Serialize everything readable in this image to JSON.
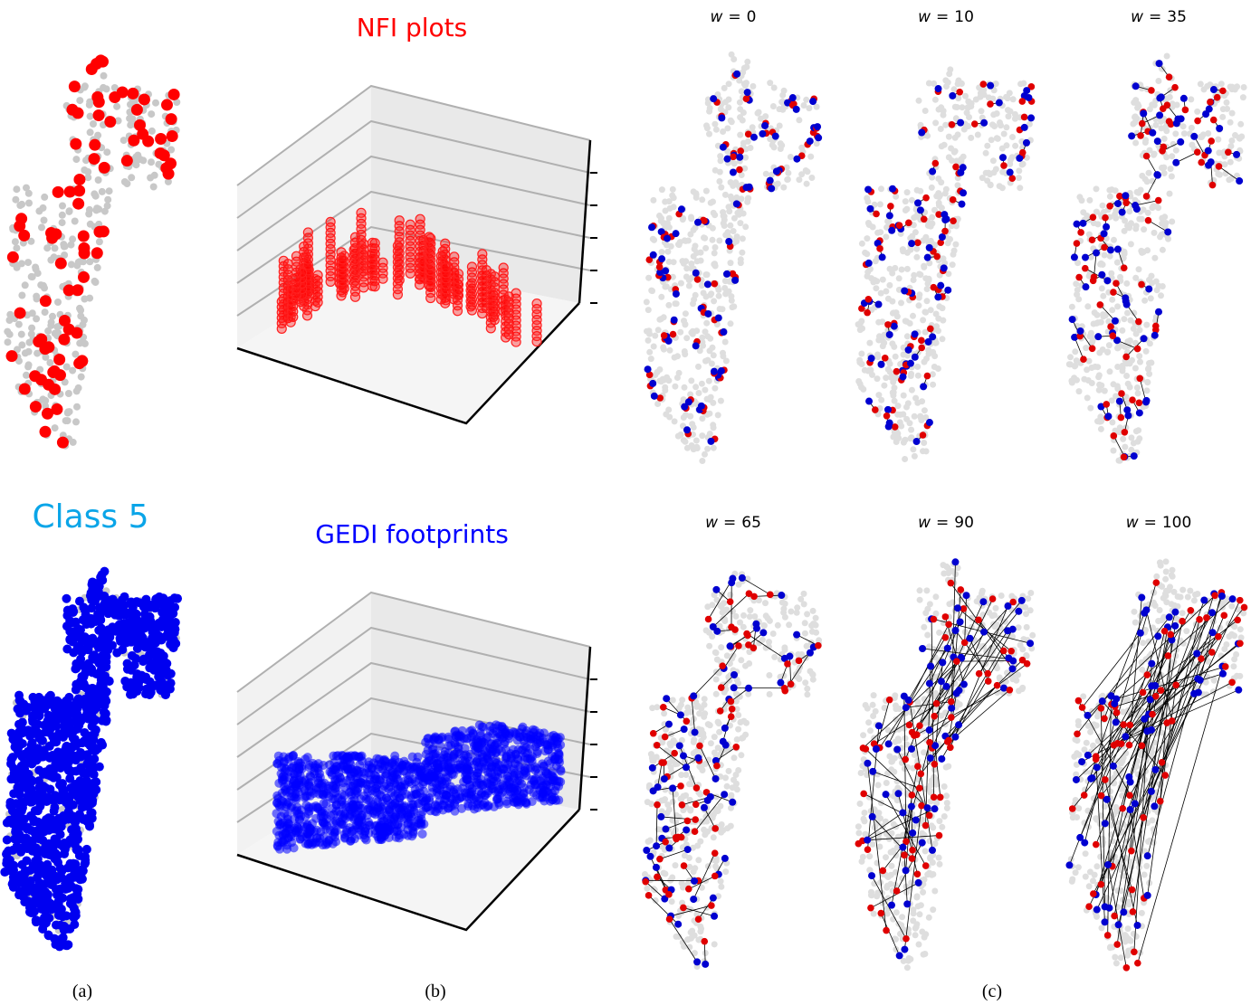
{
  "panel_a": {
    "title": "Class 5",
    "label": "(a)"
  },
  "panel_b": {
    "top_title": "NFI plots",
    "bottom_title": "GEDI footprints",
    "label": "(b)"
  },
  "panel_c": {
    "label": "(c)",
    "subplots": [
      {
        "variable": "w",
        "relation": "=",
        "value": 0
      },
      {
        "variable": "w",
        "relation": "=",
        "value": 10
      },
      {
        "variable": "w",
        "relation": "=",
        "value": 35
      },
      {
        "variable": "w",
        "relation": "=",
        "value": 65
      },
      {
        "variable": "w",
        "relation": "=",
        "value": 90
      },
      {
        "variable": "w",
        "relation": "=",
        "value": 100
      }
    ]
  }
}
